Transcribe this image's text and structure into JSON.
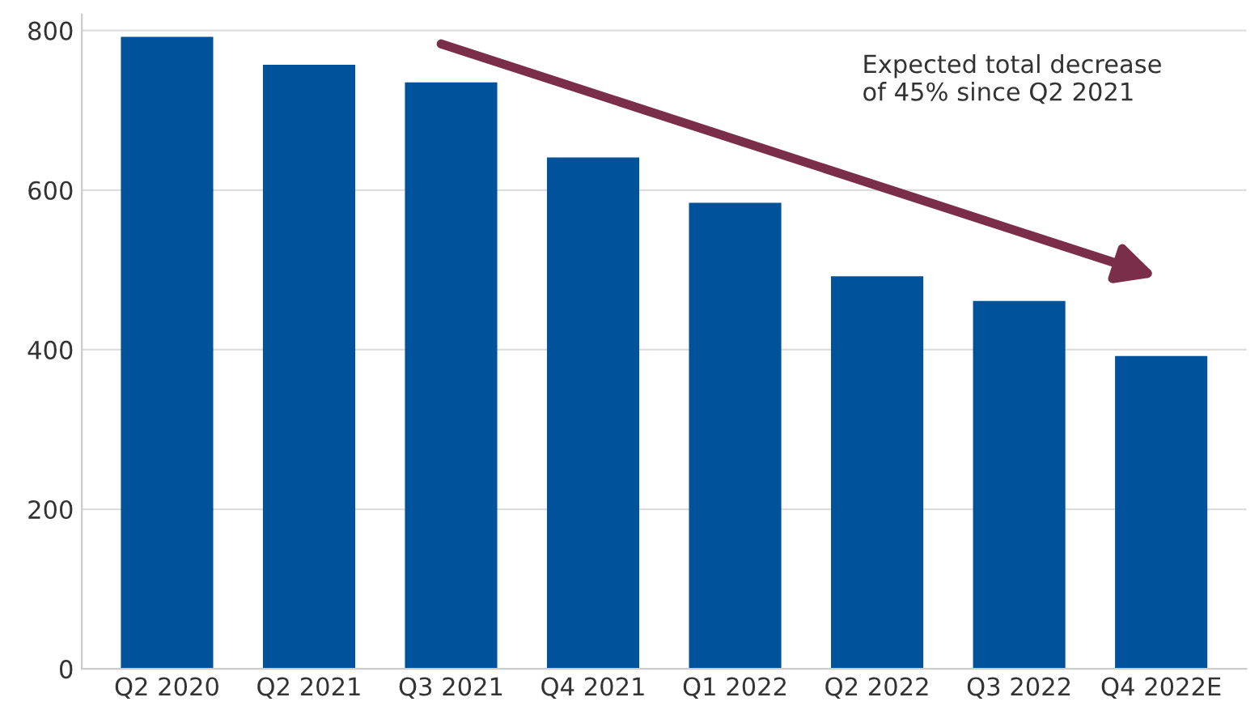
{
  "chart_data": {
    "type": "bar",
    "categories": [
      "Q2 2020",
      "Q2 2021",
      "Q3 2021",
      "Q4 2021",
      "Q1 2022",
      "Q2 2022",
      "Q3 2022",
      "Q4 2022E"
    ],
    "values": [
      792,
      757,
      735,
      641,
      584,
      492,
      461,
      392
    ],
    "color": "#00529b",
    "ylim": [
      0,
      820
    ],
    "yticks": [
      0,
      200,
      400,
      600,
      800
    ],
    "grid": "y",
    "annotations": [
      "Expected total decrease\nof 45% since Q2 2021"
    ]
  }
}
